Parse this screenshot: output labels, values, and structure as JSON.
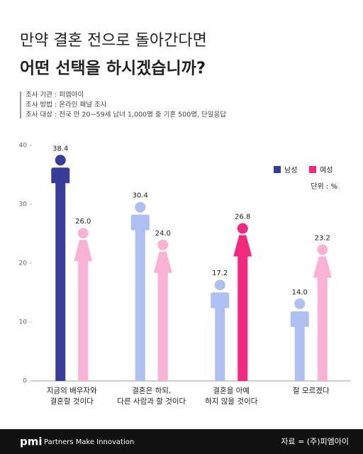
{
  "chart_data": {
    "type": "pictogram-bar",
    "title": "만약 결혼 전으로 돌아간다면",
    "subtitle": "어떤 선택을 하시겠습니까?",
    "survey_info": [
      "조사 기관 : 피엠아이",
      "조사 방법 : 온라인 패널 조사",
      "조사 대상 : 전국 만 20~59세 남녀 1,000명 중 기혼 500명, 단일응답"
    ],
    "unit": "단위 : %",
    "categories": [
      [
        "지금의 배우자와",
        "결혼할 것이다"
      ],
      [
        "결혼은 하되,",
        "다른 사람과 할 것이다"
      ],
      [
        "결혼을 아예",
        "하지 않을 것이다"
      ],
      [
        "잘 모르겠다"
      ]
    ],
    "series": [
      {
        "name": "남성",
        "color": "#383d9c",
        "colors": [
          "#383d9c",
          "#aebff2",
          "#aebff2",
          "#aebff2"
        ],
        "values": [
          38.4,
          30.4,
          17.2,
          14.0
        ],
        "value_labels": [
          "38.4",
          "30.4",
          "17.2",
          "14.0"
        ]
      },
      {
        "name": "여성",
        "color": "#f5287f",
        "colors": [
          "#f9b2d3",
          "#f9b2d3",
          "#f5287f",
          "#f9b2d3"
        ],
        "values": [
          26.0,
          24.0,
          26.8,
          23.2
        ],
        "value_labels": [
          "26.0",
          "24.0",
          "26.8",
          "23.2"
        ]
      }
    ],
    "ylim": [
      0,
      40
    ],
    "yticks": [
      0,
      10,
      20,
      30,
      40
    ],
    "footer": {
      "logo": "pmi",
      "tagline": "Partners Make Innovation",
      "source": "자료 = (주)피엠아이"
    }
  }
}
